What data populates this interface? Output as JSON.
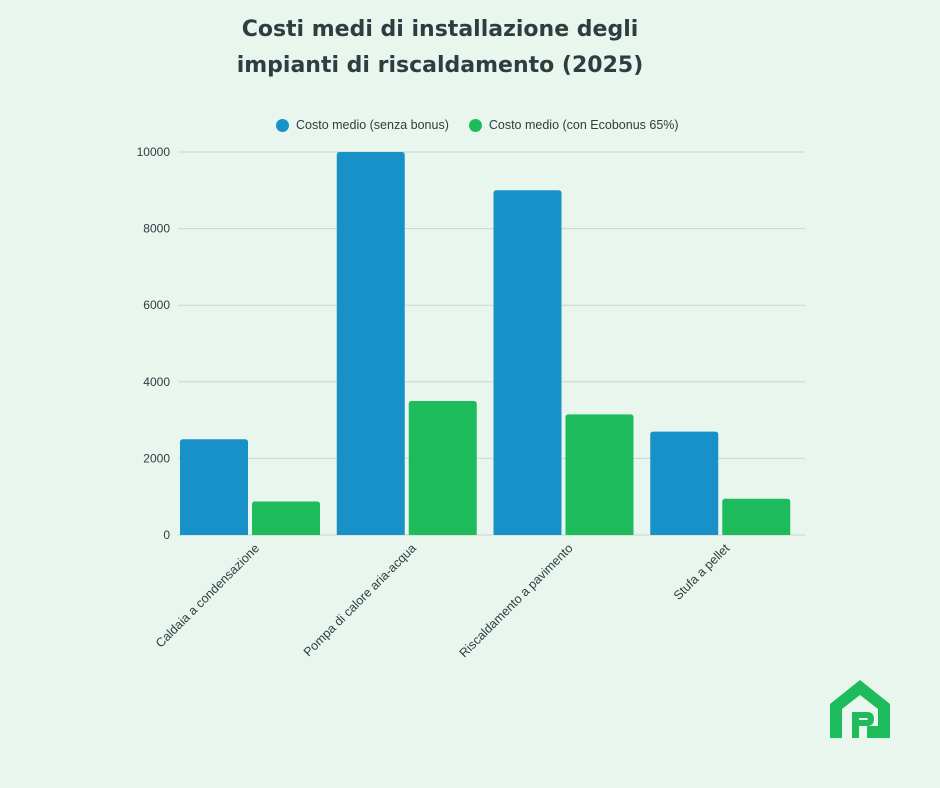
{
  "colors": {
    "background": "#e8f6ee",
    "series_blue": "#1791c8",
    "series_green": "#1dbb5b",
    "text": "#2d3e40",
    "grid": "#c8d8cf"
  },
  "logo": {
    "icon": "house-p-logo-icon",
    "color": "#1dbb5b"
  },
  "chart_data": {
    "type": "bar",
    "title_lines": [
      "Costi medi di installazione degli",
      "impianti di riscaldamento (2025)"
    ],
    "categories": [
      "Caldaia a condensazione",
      "Pompa di calore aria-acqua",
      "Riscaldamento a pavimento",
      "Stufa a pellet"
    ],
    "series": [
      {
        "name": "Costo medio (senza bonus)",
        "color": "#1791c8",
        "values": [
          2500,
          10000,
          9000,
          2700
        ]
      },
      {
        "name": "Costo medio (con Ecobonus 65%)",
        "color": "#1dbb5b",
        "values": [
          875,
          3500,
          3150,
          945
        ]
      }
    ],
    "yticks": [
      0,
      2000,
      4000,
      6000,
      8000,
      10000
    ],
    "ylim": [
      0,
      10000
    ],
    "xlabel": "",
    "ylabel": "",
    "grid": true,
    "legend_position": "top"
  }
}
